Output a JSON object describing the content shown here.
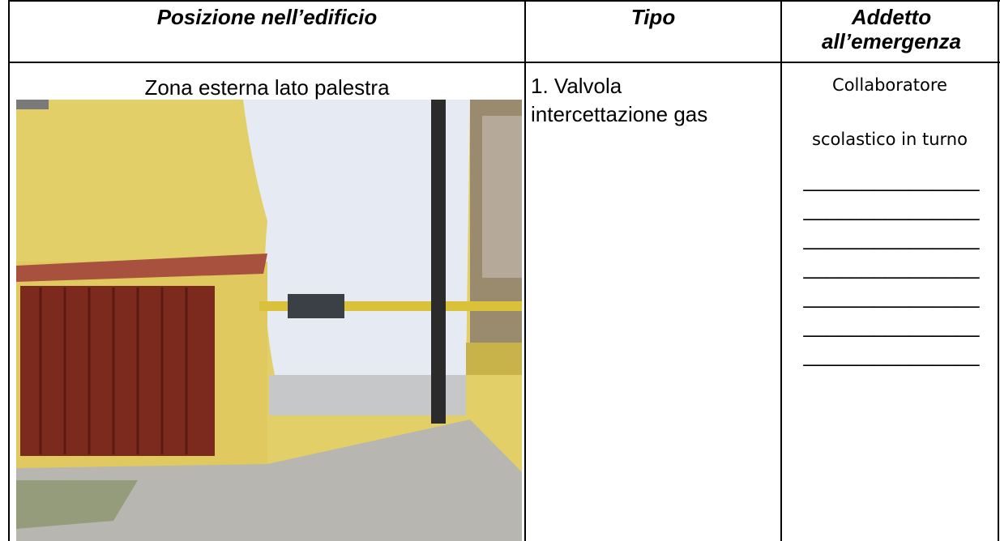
{
  "table": {
    "headers": [
      "Posizione nell’edificio",
      "Tipo",
      "Addetto all’emergenza"
    ],
    "rows": [
      [
        {
          "text": "Zona esterna lato palestra"
        },
        {
          "lines": [
            "1.  Valvola",
            "intercettazione gas"
          ]
        },
        {
          "lines": [
            "Collaboratore",
            "scolastico in turno"
          ],
          "blanks": [
            "_______________",
            "_______________",
            "_______________",
            "_______________",
            "_______________",
            "_______________",
            "_______________"
          ]
        }
      ]
    ]
  }
}
